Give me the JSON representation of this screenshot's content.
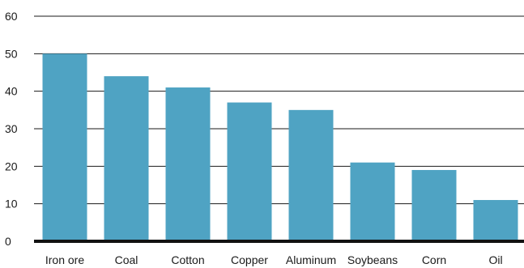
{
  "chart_data": {
    "type": "bar",
    "categories": [
      "Iron ore",
      "Coal",
      "Cotton",
      "Copper",
      "Aluminum",
      "Soybeans",
      "Corn",
      "Oil"
    ],
    "values": [
      50,
      44,
      41,
      37,
      35,
      21,
      19,
      11
    ],
    "ylim": [
      0,
      60
    ],
    "yticks": [
      0,
      10,
      20,
      30,
      40,
      50,
      60
    ],
    "grid": true,
    "bar_color": "#4fa3c3",
    "title": "",
    "xlabel": "",
    "ylabel": ""
  }
}
